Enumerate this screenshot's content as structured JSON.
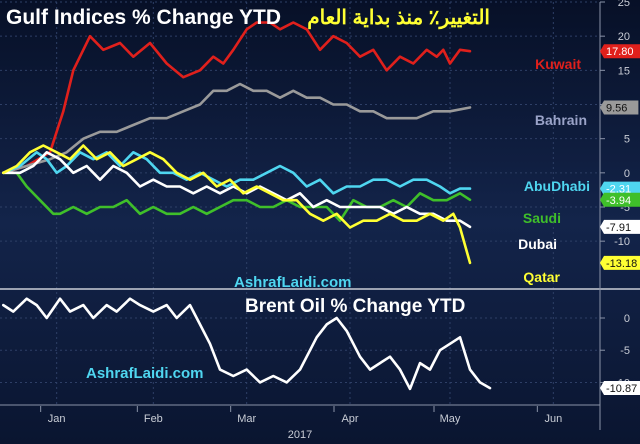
{
  "colors": {
    "background": "#0a1530",
    "kuwait": "#e0201c",
    "bahrain": "#9a9a9a",
    "abudhabi": "#4fd6f0",
    "saudi": "#3fbf2a",
    "dubai": "#ffffff",
    "qatar": "#ffff33",
    "brent": "#ffffff",
    "watermark": "#4fd6f0"
  },
  "chart_data": [
    {
      "type": "line",
      "title": "Gulf Indices % Change YTD",
      "title_arabic": "التغيير٪ منذ بداية العام",
      "watermark": "AshrafLaidi.com",
      "ylim": [
        -17,
        25
      ],
      "yticks": [
        25,
        20,
        15,
        10,
        5,
        0,
        -5,
        -10
      ],
      "ytick_labels": [
        "25",
        "20",
        "15",
        "10",
        "5",
        "0",
        "-5",
        "-10"
      ],
      "grid": true,
      "series": [
        {
          "name": "Kuwait",
          "color_key": "kuwait",
          "end_label": "17.80",
          "points": [
            [
              1,
              0
            ],
            [
              8,
              1
            ],
            [
              15,
              3
            ],
            [
              19,
              9
            ],
            [
              22,
              15
            ],
            [
              27,
              20
            ],
            [
              31,
              18
            ],
            [
              36,
              19
            ],
            [
              40,
              17
            ],
            [
              45,
              19
            ],
            [
              50,
              16
            ],
            [
              55,
              14
            ],
            [
              60,
              15
            ],
            [
              64,
              17
            ],
            [
              67,
              16
            ],
            [
              70,
              18
            ],
            [
              74,
              21
            ],
            [
              77,
              22
            ],
            [
              81,
              22
            ],
            [
              84,
              21
            ],
            [
              88,
              22
            ],
            [
              92,
              21
            ],
            [
              96,
              18
            ],
            [
              100,
              20
            ],
            [
              104,
              19
            ],
            [
              108,
              17
            ],
            [
              112,
              18
            ],
            [
              116,
              15
            ],
            [
              120,
              17
            ],
            [
              124,
              16
            ],
            [
              128,
              18
            ],
            [
              131,
              17
            ],
            [
              133,
              18
            ],
            [
              135,
              16
            ],
            [
              138,
              18
            ],
            [
              141,
              17.8
            ]
          ]
        },
        {
          "name": "Bahrain",
          "color_key": "bahrain",
          "end_label": "9.56",
          "points": [
            [
              1,
              0
            ],
            [
              8,
              1
            ],
            [
              15,
              2
            ],
            [
              20,
              3
            ],
            [
              25,
              5
            ],
            [
              30,
              6
            ],
            [
              35,
              6
            ],
            [
              40,
              7
            ],
            [
              45,
              8
            ],
            [
              50,
              8
            ],
            [
              55,
              9
            ],
            [
              60,
              10
            ],
            [
              64,
              12
            ],
            [
              68,
              12
            ],
            [
              72,
              13
            ],
            [
              76,
              12
            ],
            [
              80,
              12
            ],
            [
              84,
              11
            ],
            [
              88,
              12
            ],
            [
              92,
              11
            ],
            [
              96,
              11
            ],
            [
              100,
              10
            ],
            [
              104,
              10
            ],
            [
              108,
              9
            ],
            [
              112,
              9
            ],
            [
              116,
              8
            ],
            [
              120,
              8
            ],
            [
              125,
              8
            ],
            [
              130,
              9
            ],
            [
              135,
              9
            ],
            [
              141,
              9.56
            ]
          ]
        },
        {
          "name": "AbuDhabi",
          "color_key": "abudhabi",
          "end_label": "-2.31",
          "points": [
            [
              1,
              0
            ],
            [
              6,
              1
            ],
            [
              11,
              3
            ],
            [
              14,
              2
            ],
            [
              17,
              0
            ],
            [
              20,
              1
            ],
            [
              24,
              3
            ],
            [
              28,
              2
            ],
            [
              32,
              3
            ],
            [
              36,
              1
            ],
            [
              40,
              3
            ],
            [
              44,
              2
            ],
            [
              48,
              0
            ],
            [
              52,
              0
            ],
            [
              56,
              -1
            ],
            [
              60,
              0
            ],
            [
              64,
              -1
            ],
            [
              68,
              -2
            ],
            [
              72,
              -1
            ],
            [
              76,
              -1
            ],
            [
              80,
              0
            ],
            [
              84,
              1
            ],
            [
              88,
              0
            ],
            [
              92,
              -2
            ],
            [
              96,
              -1
            ],
            [
              100,
              -3
            ],
            [
              104,
              -2
            ],
            [
              108,
              -2
            ],
            [
              112,
              -1
            ],
            [
              116,
              -1
            ],
            [
              120,
              -2
            ],
            [
              124,
              -1
            ],
            [
              128,
              -1
            ],
            [
              132,
              -2
            ],
            [
              135,
              -3
            ],
            [
              138,
              -2.3
            ],
            [
              141,
              -2.31
            ]
          ]
        },
        {
          "name": "Saudi",
          "color_key": "saudi",
          "end_label": "-3.94",
          "points": [
            [
              1,
              0
            ],
            [
              5,
              0
            ],
            [
              8,
              -2
            ],
            [
              12,
              -4
            ],
            [
              16,
              -6
            ],
            [
              18,
              -6
            ],
            [
              22,
              -5
            ],
            [
              26,
              -6
            ],
            [
              30,
              -5
            ],
            [
              34,
              -5
            ],
            [
              38,
              -4
            ],
            [
              42,
              -6
            ],
            [
              46,
              -5
            ],
            [
              50,
              -6
            ],
            [
              54,
              -6
            ],
            [
              58,
              -5
            ],
            [
              62,
              -6
            ],
            [
              66,
              -5
            ],
            [
              70,
              -4
            ],
            [
              74,
              -4
            ],
            [
              78,
              -5
            ],
            [
              82,
              -5
            ],
            [
              86,
              -4
            ],
            [
              90,
              -5
            ],
            [
              94,
              -5
            ],
            [
              98,
              -5
            ],
            [
              102,
              -7
            ],
            [
              106,
              -4
            ],
            [
              110,
              -5
            ],
            [
              114,
              -5
            ],
            [
              118,
              -4
            ],
            [
              122,
              -5
            ],
            [
              126,
              -3
            ],
            [
              130,
              -4
            ],
            [
              134,
              -4
            ],
            [
              138,
              -3
            ],
            [
              141,
              -3.94
            ]
          ]
        },
        {
          "name": "Dubai",
          "color_key": "dubai",
          "end_label": "-7.91",
          "points": [
            [
              1,
              0
            ],
            [
              6,
              0
            ],
            [
              10,
              1
            ],
            [
              14,
              3
            ],
            [
              18,
              2
            ],
            [
              22,
              0
            ],
            [
              26,
              1
            ],
            [
              30,
              -1
            ],
            [
              34,
              1
            ],
            [
              38,
              0
            ],
            [
              42,
              -2
            ],
            [
              46,
              -1
            ],
            [
              50,
              -2
            ],
            [
              54,
              -2
            ],
            [
              58,
              -3
            ],
            [
              62,
              -2
            ],
            [
              66,
              -3
            ],
            [
              70,
              -2
            ],
            [
              74,
              -3
            ],
            [
              78,
              -2
            ],
            [
              82,
              -3
            ],
            [
              86,
              -4
            ],
            [
              90,
              -3
            ],
            [
              94,
              -5
            ],
            [
              98,
              -4
            ],
            [
              102,
              -5
            ],
            [
              106,
              -5
            ],
            [
              110,
              -5
            ],
            [
              114,
              -5
            ],
            [
              118,
              -6
            ],
            [
              122,
              -5
            ],
            [
              126,
              -6
            ],
            [
              130,
              -6
            ],
            [
              134,
              -7
            ],
            [
              138,
              -7
            ],
            [
              141,
              -7.91
            ]
          ]
        },
        {
          "name": "Qatar",
          "color_key": "qatar",
          "end_label": "-13.18",
          "points": [
            [
              1,
              0
            ],
            [
              5,
              1
            ],
            [
              9,
              3
            ],
            [
              13,
              4
            ],
            [
              17,
              3
            ],
            [
              21,
              2
            ],
            [
              25,
              4
            ],
            [
              29,
              2
            ],
            [
              33,
              3
            ],
            [
              37,
              1
            ],
            [
              41,
              2
            ],
            [
              45,
              3
            ],
            [
              49,
              2
            ],
            [
              53,
              0
            ],
            [
              57,
              -1
            ],
            [
              61,
              0
            ],
            [
              65,
              -2
            ],
            [
              69,
              -1
            ],
            [
              73,
              -3
            ],
            [
              77,
              -2
            ],
            [
              81,
              -3
            ],
            [
              85,
              -4
            ],
            [
              89,
              -4
            ],
            [
              93,
              -6
            ],
            [
              97,
              -7
            ],
            [
              101,
              -6
            ],
            [
              105,
              -8
            ],
            [
              109,
              -7
            ],
            [
              113,
              -7
            ],
            [
              117,
              -6
            ],
            [
              121,
              -7
            ],
            [
              125,
              -7
            ],
            [
              129,
              -6
            ],
            [
              133,
              -7
            ],
            [
              136,
              -6
            ],
            [
              138,
              -8
            ],
            [
              141,
              -13.18
            ]
          ]
        }
      ]
    },
    {
      "type": "line",
      "title": "Brent Oil % Change YTD",
      "watermark": "AshrafLaidi.com",
      "ylim": [
        -13.5,
        4.5
      ],
      "yticks": [
        0,
        -5,
        -10
      ],
      "ytick_labels": [
        "0",
        "-5",
        "-10"
      ],
      "grid": true,
      "series": [
        {
          "name": "Brent",
          "color_key": "brent",
          "end_label": "-10.87",
          "points": [
            [
              1,
              2
            ],
            [
              4,
              1
            ],
            [
              8,
              3
            ],
            [
              11,
              2
            ],
            [
              14,
              0
            ],
            [
              18,
              3
            ],
            [
              21,
              1
            ],
            [
              25,
              2
            ],
            [
              28,
              0
            ],
            [
              32,
              2
            ],
            [
              35,
              1
            ],
            [
              39,
              3
            ],
            [
              42,
              2
            ],
            [
              46,
              1
            ],
            [
              50,
              2
            ],
            [
              53,
              0
            ],
            [
              57,
              2
            ],
            [
              60,
              -1
            ],
            [
              63,
              -4
            ],
            [
              66,
              -8
            ],
            [
              70,
              -9
            ],
            [
              74,
              -8
            ],
            [
              78,
              -10
            ],
            [
              82,
              -9
            ],
            [
              86,
              -10
            ],
            [
              90,
              -8
            ],
            [
              92,
              -6
            ],
            [
              95,
              -3
            ],
            [
              98,
              -1
            ],
            [
              101,
              0
            ],
            [
              104,
              -2
            ],
            [
              108,
              -6
            ],
            [
              111,
              -8
            ],
            [
              114,
              -7
            ],
            [
              117,
              -6
            ],
            [
              120,
              -8
            ],
            [
              123,
              -11
            ],
            [
              126,
              -7
            ],
            [
              129,
              -8
            ],
            [
              132,
              -5
            ],
            [
              135,
              -4
            ],
            [
              138,
              -3
            ],
            [
              141,
              -8
            ],
            [
              144,
              -10
            ],
            [
              147,
              -10.87
            ]
          ]
        }
      ]
    }
  ],
  "x_axis": {
    "ticks": [
      {
        "label": "Jan",
        "day": 17
      },
      {
        "label": "Feb",
        "day": 46
      },
      {
        "label": "Mar",
        "day": 74
      },
      {
        "label": "Apr",
        "day": 105
      },
      {
        "label": "May",
        "day": 135
      },
      {
        "label": "Jun",
        "day": 166
      }
    ],
    "year_label": "2017"
  }
}
